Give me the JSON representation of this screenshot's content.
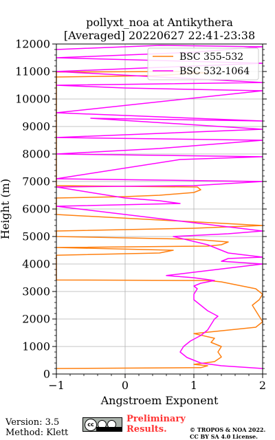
{
  "chart_data": {
    "type": "line",
    "title": "pollyxt_noa at Antikythera",
    "subtitle": "[Averaged] 20220627 22:41-23:38",
    "xlabel": "Angstroem Exponent",
    "ylabel": "Height (m)",
    "xlim": [
      -1,
      2
    ],
    "ylim": [
      0,
      12000
    ],
    "xticks": [
      -1,
      0,
      1,
      2
    ],
    "xtick_labels": [
      "−1",
      "0",
      "1",
      "2"
    ],
    "yticks": [
      0,
      1000,
      2000,
      3000,
      4000,
      5000,
      6000,
      7000,
      8000,
      9000,
      10000,
      11000,
      12000
    ],
    "ytick_labels": [
      "0",
      "1000",
      "2000",
      "3000",
      "4000",
      "5000",
      "6000",
      "7000",
      "8000",
      "9000",
      "10000",
      "11000",
      "12000"
    ],
    "grid": true,
    "legend_position": "top-right",
    "series": [
      {
        "name": "BSC 355-532",
        "color": "#ff7f0e",
        "x": [
          -1,
          1.1,
          1.2,
          1.0,
          1.3,
          1.4,
          1.35,
          1.4,
          1.25,
          1.3,
          1.0,
          1.9,
          2.0,
          1.95,
          1.9,
          1.85,
          1.95,
          2.0,
          1.95,
          1.9,
          1.7,
          1.5,
          1.4,
          1.2,
          -1,
          -1,
          0.5,
          0.7,
          -1,
          1.2,
          1.4,
          1.5,
          1.0,
          -1,
          -1,
          1.0,
          2.0,
          -1,
          -1,
          0.0,
          0.5,
          1.0,
          1.1,
          1.05,
          -1,
          -1,
          0.8,
          1.2,
          0.4,
          -1
        ],
        "y": [
          200,
          230,
          300,
          350,
          450,
          620,
          800,
          1000,
          1150,
          1300,
          1470,
          1700,
          1900,
          2100,
          2300,
          2500,
          2700,
          2900,
          3000,
          3100,
          3200,
          3300,
          3350,
          3400,
          3420,
          4320,
          4400,
          4500,
          4600,
          4650,
          4700,
          4800,
          4900,
          5000,
          5200,
          5300,
          5400,
          5800,
          6400,
          6450,
          6500,
          6600,
          6700,
          6800,
          6850,
          10980,
          11000,
          10950,
          10850,
          10800
        ]
      },
      {
        "name": "BSC 532-1064",
        "color": "#ff00ff",
        "x": [
          2.0,
          1.4,
          1.1,
          0.9,
          0.8,
          0.85,
          0.95,
          1.1,
          1.2,
          1.25,
          1.3,
          1.35,
          1.2,
          1.1,
          1.0,
          1.0,
          1.05,
          1.0,
          1.05,
          1.1,
          1.2,
          1.3,
          1.0,
          0.6,
          1.0,
          1.5,
          2.0,
          1.4,
          1.5,
          2.0,
          1.5,
          1.2,
          0.7,
          1.5,
          2.0,
          -1,
          0.8,
          0.5,
          0.0,
          -1,
          1.0,
          2.0,
          -1,
          0.8,
          2.0,
          -1,
          0.5,
          2.0,
          -1,
          2.0,
          -0.5,
          2.0,
          -1,
          2.0,
          0.0,
          -1,
          2.0,
          -1,
          2.0,
          -1,
          1.0,
          2.0,
          0.5,
          -1
        ],
        "y": [
          200,
          300,
          400,
          600,
          800,
          1000,
          1200,
          1400,
          1600,
          1800,
          2000,
          2100,
          2300,
          2500,
          2700,
          2900,
          3100,
          3200,
          3250,
          3300,
          3350,
          3400,
          3500,
          3580,
          3700,
          3850,
          4000,
          4100,
          4200,
          4250,
          4400,
          4700,
          5000,
          5100,
          5200,
          6100,
          6200,
          6300,
          6400,
          6800,
          6850,
          7000,
          7100,
          7800,
          7900,
          8000,
          8200,
          8500,
          8600,
          8900,
          9300,
          9200,
          9500,
          10300,
          10400,
          10500,
          10600,
          11000,
          11300,
          11500,
          11700,
          11900,
          11950,
          11800
        ]
      }
    ]
  },
  "footer": {
    "version": "Version: 3.5",
    "method": "Method: Klett",
    "preliminary_line1": "Preliminary",
    "preliminary_line2": "Results.",
    "copyright_line1": "© TROPOS & NOA 2022.",
    "copyright_line2": "CC BY SA 4.0 License."
  }
}
